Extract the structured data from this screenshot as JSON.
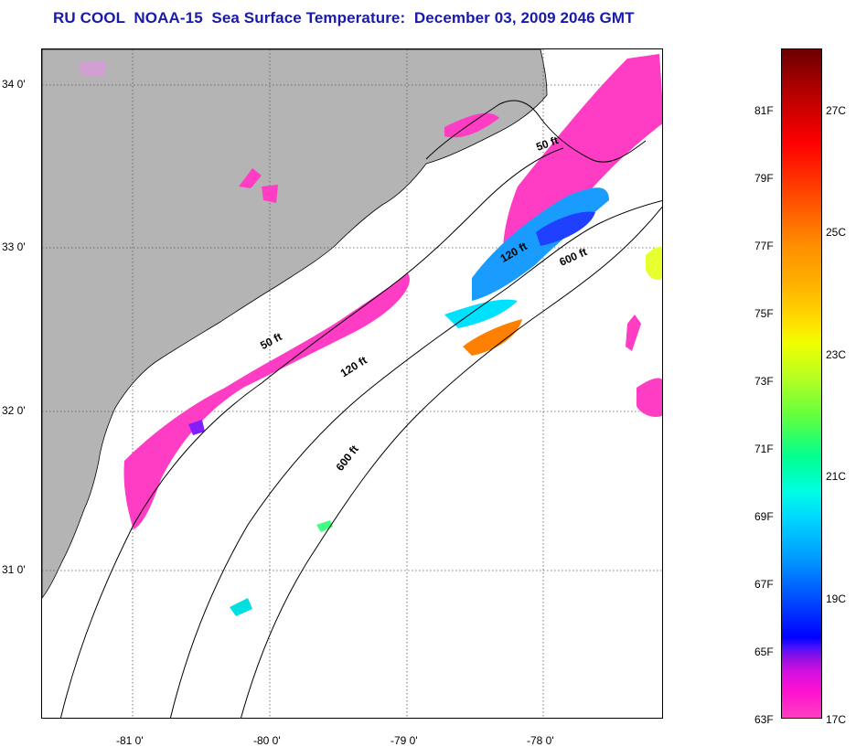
{
  "title": "RU COOL  NOAA-15  Sea Surface Temperature:  December 03, 2009 2046 GMT",
  "map": {
    "lat_labels": [
      "34 0'",
      "33 0'",
      "32 0'",
      "31 0'"
    ],
    "lon_labels": [
      "-81 0'",
      "-80 0'",
      "-79 0'",
      "-78 0'"
    ],
    "isobaths": [
      "50 ft",
      "120 ft",
      "600 ft",
      "50 ft",
      "120 ft",
      "600 ft"
    ],
    "colors": {
      "land": "#b4b4b4",
      "ocean": "#ffffff",
      "grid": "#555555"
    }
  },
  "colorbar": {
    "fahrenheit": [
      "81F",
      "79F",
      "77F",
      "75F",
      "73F",
      "71F",
      "69F",
      "67F",
      "65F",
      "63F"
    ],
    "celsius": [
      "27C",
      "25C",
      "23C",
      "21C",
      "19C",
      "17C"
    ]
  }
}
